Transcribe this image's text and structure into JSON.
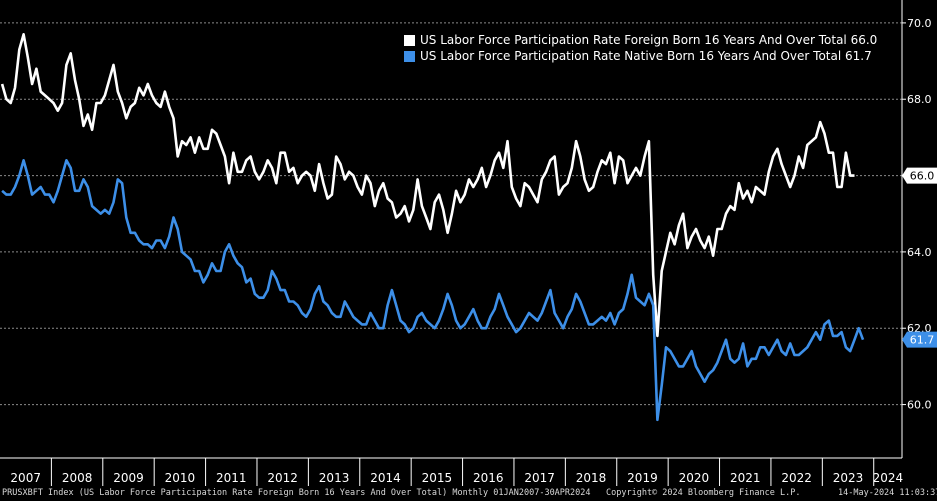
{
  "chart_data": {
    "type": "line",
    "grid": "horizontal dashed",
    "ylim": [
      58.6,
      70.6
    ],
    "yticks": [
      "60.0",
      "62.0",
      "64.0",
      "66.0",
      "68.0",
      "70.0"
    ],
    "xlim": [
      2007.0,
      2024.55
    ],
    "x_labels": [
      "2007",
      "2008",
      "2009",
      "2010",
      "2011",
      "2012",
      "2013",
      "2014",
      "2015",
      "2016",
      "2017",
      "2018",
      "2019",
      "2020",
      "2021",
      "2022",
      "2023",
      "2024"
    ],
    "legend_position": "top-right",
    "series": [
      {
        "name": "US Labor Force Participation Rate Foreign Born 16 Years And Over Total",
        "last_label": "66.0",
        "color": "#ffffff",
        "label_bg": "#ffffff",
        "label_color": "#000000",
        "values": [
          68.4,
          68.0,
          67.9,
          68.3,
          69.3,
          69.7,
          69.1,
          68.4,
          68.8,
          68.2,
          68.1,
          68.0,
          67.9,
          67.7,
          67.9,
          68.9,
          69.2,
          68.5,
          68.0,
          67.3,
          67.6,
          67.2,
          67.9,
          67.9,
          68.1,
          68.5,
          68.9,
          68.2,
          67.9,
          67.5,
          67.8,
          67.9,
          68.3,
          68.1,
          68.4,
          68.1,
          67.9,
          67.8,
          68.2,
          67.8,
          67.5,
          66.5,
          66.9,
          66.8,
          67.0,
          66.6,
          67.0,
          66.7,
          66.7,
          67.2,
          67.1,
          66.8,
          66.5,
          65.8,
          66.6,
          66.1,
          66.1,
          66.4,
          66.5,
          66.1,
          65.9,
          66.1,
          66.4,
          66.2,
          65.8,
          66.6,
          66.6,
          66.1,
          66.2,
          65.8,
          66.0,
          66.1,
          66.0,
          65.6,
          66.3,
          65.8,
          65.4,
          65.5,
          66.5,
          66.3,
          65.9,
          66.1,
          66.0,
          65.7,
          65.5,
          66.0,
          65.8,
          65.2,
          65.6,
          65.8,
          65.4,
          65.3,
          64.9,
          65.0,
          65.2,
          64.8,
          65.1,
          65.9,
          65.2,
          64.9,
          64.6,
          65.3,
          65.5,
          65.1,
          64.5,
          65.0,
          65.6,
          65.3,
          65.5,
          65.9,
          65.7,
          65.9,
          66.2,
          65.7,
          66.0,
          66.4,
          66.6,
          66.2,
          66.9,
          65.7,
          65.4,
          65.2,
          65.8,
          65.7,
          65.5,
          65.3,
          65.9,
          66.1,
          66.4,
          66.5,
          65.5,
          65.7,
          65.8,
          66.2,
          66.9,
          66.5,
          65.9,
          65.6,
          65.7,
          66.1,
          66.4,
          66.3,
          66.6,
          65.8,
          66.5,
          66.4,
          65.8,
          66.0,
          66.2,
          66.0,
          66.5,
          66.9,
          63.4,
          61.8,
          63.5,
          64.0,
          64.5,
          64.2,
          64.7,
          65.0,
          64.1,
          64.4,
          64.6,
          64.3,
          64.1,
          64.4,
          63.9,
          64.6,
          64.6,
          65.0,
          65.2,
          65.1,
          65.8,
          65.4,
          65.6,
          65.3,
          65.7,
          65.6,
          65.5,
          66.1,
          66.5,
          66.7,
          66.3,
          66.0,
          65.7,
          66.0,
          66.5,
          66.2,
          66.8,
          66.9,
          67.0,
          67.4,
          67.1,
          66.6,
          66.6,
          65.7,
          65.7,
          66.6,
          66.0,
          66.0
        ]
      },
      {
        "name": "US Labor Force Participation Rate Native Born 16 Years And Over Total",
        "last_label": "61.7",
        "color": "#3d8fe8",
        "label_bg": "#3d8fe8",
        "label_color": "#ffffff",
        "values": [
          65.6,
          65.5,
          65.5,
          65.7,
          66.0,
          66.4,
          66.0,
          65.5,
          65.6,
          65.7,
          65.5,
          65.5,
          65.3,
          65.6,
          66.0,
          66.4,
          66.2,
          65.6,
          65.6,
          65.9,
          65.7,
          65.2,
          65.1,
          65.0,
          65.1,
          65.0,
          65.3,
          65.9,
          65.8,
          64.9,
          64.5,
          64.5,
          64.3,
          64.2,
          64.2,
          64.1,
          64.3,
          64.3,
          64.1,
          64.4,
          64.9,
          64.6,
          64.0,
          63.9,
          63.8,
          63.5,
          63.5,
          63.2,
          63.4,
          63.7,
          63.5,
          63.5,
          64.0,
          64.2,
          63.9,
          63.7,
          63.6,
          63.2,
          63.3,
          62.9,
          62.8,
          62.8,
          63.0,
          63.5,
          63.3,
          63.0,
          63.0,
          62.7,
          62.7,
          62.6,
          62.4,
          62.3,
          62.5,
          62.9,
          63.1,
          62.7,
          62.6,
          62.4,
          62.3,
          62.3,
          62.7,
          62.5,
          62.3,
          62.2,
          62.1,
          62.1,
          62.4,
          62.2,
          62.0,
          62.0,
          62.6,
          63.0,
          62.6,
          62.2,
          62.1,
          61.9,
          62.0,
          62.3,
          62.4,
          62.2,
          62.1,
          62.0,
          62.2,
          62.5,
          62.9,
          62.6,
          62.2,
          62.0,
          62.1,
          62.3,
          62.5,
          62.2,
          62.0,
          62.0,
          62.3,
          62.5,
          62.9,
          62.6,
          62.3,
          62.1,
          61.9,
          62.0,
          62.2,
          62.4,
          62.3,
          62.2,
          62.4,
          62.7,
          63.0,
          62.4,
          62.2,
          62.0,
          62.3,
          62.5,
          62.9,
          62.7,
          62.4,
          62.1,
          62.1,
          62.2,
          62.3,
          62.2,
          62.4,
          62.1,
          62.4,
          62.5,
          62.9,
          63.4,
          62.8,
          62.7,
          62.6,
          62.9,
          62.6,
          59.6,
          60.5,
          61.5,
          61.4,
          61.2,
          61.0,
          61.0,
          61.2,
          61.4,
          61.0,
          60.8,
          60.6,
          60.8,
          60.9,
          61.1,
          61.4,
          61.7,
          61.2,
          61.1,
          61.2,
          61.6,
          61.0,
          61.2,
          61.2,
          61.5,
          61.5,
          61.3,
          61.5,
          61.7,
          61.4,
          61.3,
          61.6,
          61.3,
          61.3,
          61.4,
          61.5,
          61.7,
          61.9,
          61.7,
          62.1,
          62.2,
          61.8,
          61.8,
          61.9,
          61.5,
          61.4,
          61.7,
          62.0,
          61.7
        ]
      }
    ]
  },
  "legend": {
    "row1_text": "US Labor Force Participation Rate Foreign Born 16 Years And Over Total 66.0",
    "row2_text": "US Labor Force Participation Rate Native Born 16 Years And Over Total  61.7"
  },
  "footer": {
    "left": "PRUSXBFT Index (US Labor Force Participation Rate Foreign Born 16 Years And Over Total) Monthly 01JAN2007-30APR2024",
    "center": "Copyright© 2024 Bloomberg Finance L.P.",
    "right": "14-May-2024 11:03:37"
  }
}
